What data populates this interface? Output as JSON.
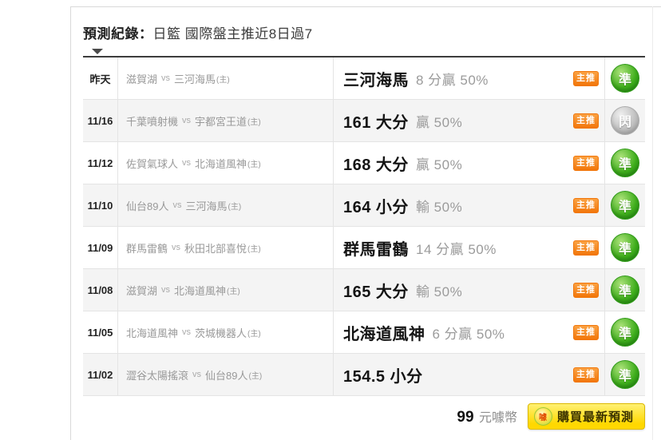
{
  "header": {
    "title_bold": "預測紀錄：",
    "title_rest": "日籃 國際盤主推近8日過7"
  },
  "table": {
    "vs_label": "vs",
    "home_mark": "(主)",
    "main_pick_badge": "主推",
    "rows": [
      {
        "date": "昨天",
        "away": "滋賀湖",
        "home": "三河海馬",
        "pick_main": "三河海馬",
        "pick_detail": "8 分贏 50%",
        "result": "準",
        "result_state": "hit"
      },
      {
        "date": "11/16",
        "away": "千葉噴射機",
        "home": "宇都宮王道",
        "pick_main": "161 大分",
        "pick_detail": "贏 50%",
        "result": "閃",
        "result_state": "push"
      },
      {
        "date": "11/12",
        "away": "佐賀氣球人",
        "home": "北海道風神",
        "pick_main": "168 大分",
        "pick_detail": "贏 50%",
        "result": "準",
        "result_state": "hit"
      },
      {
        "date": "11/10",
        "away": "仙台89人",
        "home": "三河海馬",
        "pick_main": "164 小分",
        "pick_detail": "輸 50%",
        "result": "準",
        "result_state": "hit"
      },
      {
        "date": "11/09",
        "away": "群馬雷鶴",
        "home": "秋田北部喜悅",
        "pick_main": "群馬雷鶴",
        "pick_detail": "14 分贏 50%",
        "result": "準",
        "result_state": "hit"
      },
      {
        "date": "11/08",
        "away": "滋賀湖",
        "home": "北海道風神",
        "pick_main": "165 大分",
        "pick_detail": "輸 50%",
        "result": "準",
        "result_state": "hit"
      },
      {
        "date": "11/05",
        "away": "北海道風神",
        "home": "茨城機器人",
        "pick_main": "北海道風神",
        "pick_detail": "6 分贏 50%",
        "result": "準",
        "result_state": "hit"
      },
      {
        "date": "11/02",
        "away": "澀谷太陽搖滾",
        "home": "仙台89人",
        "pick_main": "154.5 小分",
        "pick_detail": "",
        "result": "準",
        "result_state": "hit"
      }
    ]
  },
  "footer": {
    "price_value": "99",
    "price_unit": "元噱幣",
    "buy_button_label": "購買最新預測",
    "coin_icon_glyph": "噱"
  },
  "colors": {
    "badge-orange": "#f2760a",
    "badge-orange-light": "#faa243",
    "hit-green": "#3fae1c",
    "hit-green-light": "#ace27a",
    "push-gray": "#bdbdbd",
    "push-gray-light": "#efefef",
    "button-yellow": "#ffd800",
    "button-yellow-light": "#fff173",
    "button-yellow-border": "#ddb900"
  }
}
